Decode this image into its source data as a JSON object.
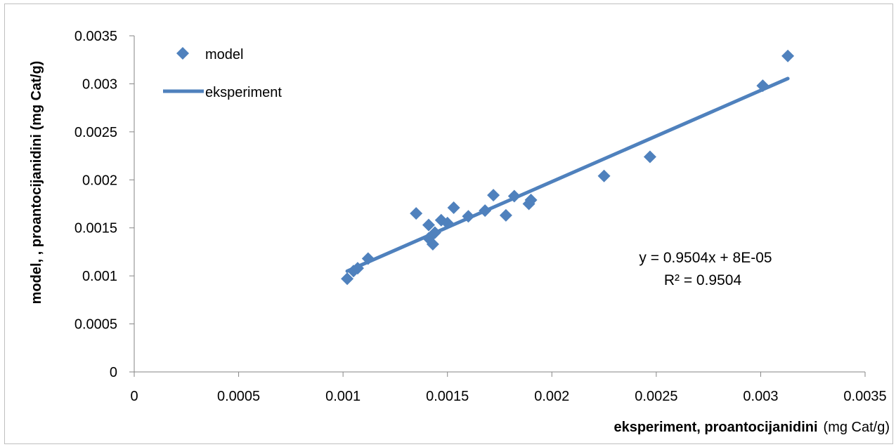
{
  "chart_data": {
    "type": "scatter",
    "xlabel": "eksperiment, proantocijanidini",
    "xlabel_unit": "(mg Cat/g)",
    "ylabel": "model, , proantocijanidini  (mg Cat/g)",
    "xlim": [
      0,
      0.0035
    ],
    "ylim": [
      0,
      0.0035
    ],
    "x_ticks": [
      "0",
      "0.0005",
      "0.001",
      "0.0015",
      "0.002",
      "0.0025",
      "0.003",
      "0.0035"
    ],
    "y_ticks": [
      "0",
      "0.0005",
      "0.001",
      "0.0015",
      "0.002",
      "0.0025",
      "0.003",
      "0.0035"
    ],
    "x_tick_values": [
      0,
      0.0005,
      0.001,
      0.0015,
      0.002,
      0.0025,
      0.003,
      0.0035
    ],
    "y_tick_values": [
      0,
      0.0005,
      0.001,
      0.0015,
      0.002,
      0.0025,
      0.003,
      0.0035
    ],
    "grid": false,
    "legend_position": "top-left",
    "series": [
      {
        "name": "model",
        "kind": "markers",
        "marker": "diamond",
        "color": "#4f81bd",
        "points": [
          [
            0.00102,
            0.00097
          ],
          [
            0.00105,
            0.00105
          ],
          [
            0.00107,
            0.00108
          ],
          [
            0.00112,
            0.00118
          ],
          [
            0.00135,
            0.00165
          ],
          [
            0.00141,
            0.00153
          ],
          [
            0.00141,
            0.00139
          ],
          [
            0.00143,
            0.00133
          ],
          [
            0.00144,
            0.00145
          ],
          [
            0.00147,
            0.00158
          ],
          [
            0.0015,
            0.00155
          ],
          [
            0.00153,
            0.00171
          ],
          [
            0.0016,
            0.00162
          ],
          [
            0.00168,
            0.00168
          ],
          [
            0.00172,
            0.00184
          ],
          [
            0.00178,
            0.00163
          ],
          [
            0.00182,
            0.00183
          ],
          [
            0.00189,
            0.00175
          ],
          [
            0.0019,
            0.00179
          ],
          [
            0.00225,
            0.00204
          ],
          [
            0.00247,
            0.00224
          ],
          [
            0.00301,
            0.00298
          ],
          [
            0.00313,
            0.00329
          ]
        ]
      },
      {
        "name": "eksperiment",
        "kind": "line",
        "color": "#4f81bd",
        "x_range": [
          0.00102,
          0.00313
        ]
      }
    ],
    "trendline": {
      "slope": 0.9504,
      "intercept": 8e-05
    },
    "annotations": {
      "equation": "y = 0.9504x + 8E-05",
      "r_squared": "R² = 0.9504"
    }
  }
}
